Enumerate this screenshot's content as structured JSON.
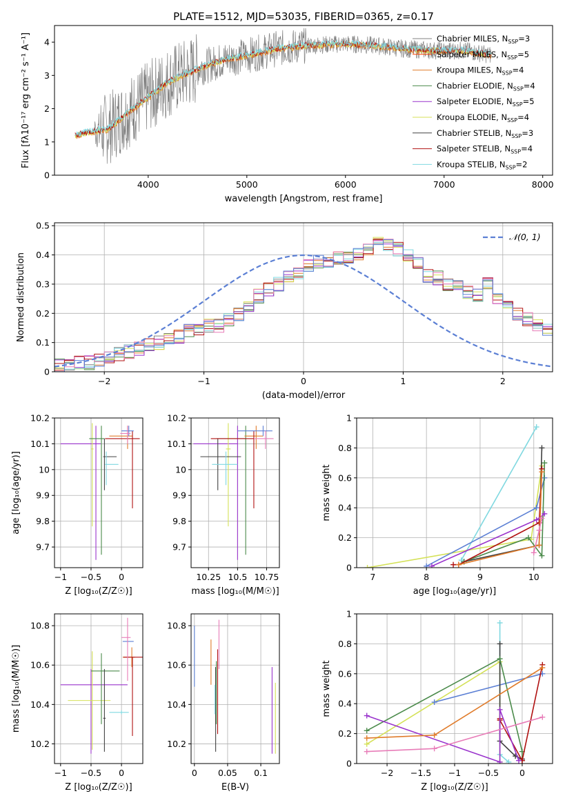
{
  "figure": {
    "title": "PLATE=1512, MJD=53035, FIBERID=0365, z=0.17",
    "colors": {
      "chabrier_miles": "#808080",
      "salpeter_miles": "#ff4500",
      "kroupa_miles": "#e07b2a",
      "chabrier_elodie": "#4a8a4a",
      "salpeter_elodie": "#9932cc",
      "kroupa_elodie": "#d4e157",
      "chabrier_stelib": "#404040",
      "salpeter_stelib": "#b01010",
      "kroupa_stelib": "#7fd8e0",
      "gaussian": "#5b7fd4",
      "pink": "#e87cb8",
      "blue": "#5b7fd4"
    }
  },
  "chart_data": [
    {
      "id": "spectrum",
      "type": "line",
      "title": "PLATE=1512, MJD=53035, FIBERID=0365, z=0.17",
      "xlabel": "wavelength [Angstrom, rest frame]",
      "ylabel": "Flux [fλ10⁻¹⁷ erg cm⁻² s⁻¹ A⁻¹]",
      "xlim": [
        3050,
        8100
      ],
      "ylim": [
        0,
        4.5
      ],
      "xticks": [
        4000,
        5000,
        6000,
        7000,
        8000
      ],
      "yticks": [
        0,
        1,
        2,
        3,
        4
      ],
      "legend": [
        "Chabrier MILES, N_SSP=3",
        "Salpeter MILES, N_SSP=5",
        "Kroupa MILES, N_SSP=4",
        "Chabrier ELODIE, N_SSP=4",
        "Salpeter ELODIE, N_SSP=5",
        "Kroupa ELODIE, N_SSP=4",
        "Chabrier STELIB, N_SSP=3",
        "Salpeter STELIB, N_SSP=4",
        "Kroupa STELIB, N_SSP=2"
      ],
      "continuum": [
        [
          3260,
          1.2
        ],
        [
          3400,
          1.3
        ],
        [
          3600,
          1.4
        ],
        [
          3800,
          1.9
        ],
        [
          4000,
          2.35
        ],
        [
          4200,
          2.8
        ],
        [
          4500,
          3.2
        ],
        [
          4800,
          3.5
        ],
        [
          5000,
          3.6
        ],
        [
          5300,
          3.8
        ],
        [
          5600,
          3.9
        ],
        [
          6000,
          3.95
        ],
        [
          6300,
          3.9
        ],
        [
          6600,
          3.8
        ],
        [
          6900,
          3.75
        ],
        [
          7200,
          3.75
        ],
        [
          7500,
          3.6
        ]
      ]
    },
    {
      "id": "residuals",
      "type": "histogram",
      "xlabel": "(data-model)/error",
      "ylabel": "Normed distribution",
      "legend_label": "𝒩(0, 1)",
      "xlim": [
        -2.5,
        2.5
      ],
      "ylim": [
        0,
        0.51
      ],
      "xticks": [
        -2,
        -1,
        0,
        1,
        2
      ],
      "yticks": [
        0.0,
        0.1,
        0.2,
        0.3,
        0.4,
        0.5
      ],
      "bin_width": 0.1,
      "bins_from": -2.5,
      "base_values": [
        0.02,
        0.02,
        0.03,
        0.03,
        0.04,
        0.05,
        0.06,
        0.07,
        0.08,
        0.09,
        0.1,
        0.12,
        0.12,
        0.14,
        0.15,
        0.16,
        0.16,
        0.18,
        0.2,
        0.23,
        0.26,
        0.28,
        0.3,
        0.32,
        0.34,
        0.36,
        0.38,
        0.38,
        0.39,
        0.39,
        0.4,
        0.42,
        0.45,
        0.44,
        0.42,
        0.4,
        0.37,
        0.33,
        0.32,
        0.3,
        0.29,
        0.27,
        0.26,
        0.3,
        0.25,
        0.22,
        0.2,
        0.18,
        0.16,
        0.14,
        0.13,
        0.12,
        0.1,
        0.09,
        0.08,
        0.08,
        0.07,
        0.06,
        0.05,
        0.05
      ]
    },
    {
      "id": "age-vs-Z",
      "type": "errorbar",
      "xlabel": "Z [log₁₀(Z/Z☉)]",
      "ylabel": "age  [log₁₀(age/yr)]",
      "xlim": [
        -1.1,
        0.35
      ],
      "ylim": [
        9.62,
        10.2
      ],
      "xticks": [
        -1.0,
        -0.5,
        0.0
      ],
      "yticks": [
        9.7,
        9.8,
        9.9,
        10.0,
        10.1,
        10.2
      ],
      "points": [
        {
          "x": -0.42,
          "y": 10.1,
          "xerr": [
            0.58,
            0.08
          ],
          "yerr": [
            0.45,
            0.07
          ],
          "c": "salpeter_elodie"
        },
        {
          "x": -0.48,
          "y": 10.08,
          "xerr": [
            0.02,
            0.02
          ],
          "yerr": [
            0.3,
            0.1
          ],
          "c": "kroupa_elodie"
        },
        {
          "x": -0.33,
          "y": 10.12,
          "xerr": [
            0.2,
            0.05
          ],
          "yerr": [
            0.45,
            0.05
          ],
          "c": "chabrier_elodie"
        },
        {
          "x": -0.28,
          "y": 10.05,
          "xerr": [
            0.02,
            0.2
          ],
          "yerr": [
            0.13,
            0.07
          ],
          "c": "chabrier_stelib"
        },
        {
          "x": -0.25,
          "y": 10.02,
          "xerr": [
            0.02,
            0.2
          ],
          "yerr": [
            0.08,
            0.05
          ],
          "c": "kroupa_stelib"
        },
        {
          "x": 0.1,
          "y": 10.13,
          "xerr": [
            0.3,
            0.08
          ],
          "yerr": [
            0.05,
            0.04
          ],
          "c": "kroupa_miles"
        },
        {
          "x": 0.18,
          "y": 10.12,
          "xerr": [
            0.45,
            0.12
          ],
          "yerr": [
            0.27,
            0.03
          ],
          "c": "salpeter_stelib"
        },
        {
          "x": 0.12,
          "y": 10.15,
          "xerr": [
            0.12,
            0.08
          ],
          "yerr": [
            0.02,
            0.02
          ],
          "c": "blue"
        },
        {
          "x": 0.1,
          "y": 10.14,
          "xerr": [
            0.12,
            0.05
          ],
          "yerr": [
            0.04,
            0.03
          ],
          "c": "pink"
        }
      ]
    },
    {
      "id": "age-vs-mass",
      "type": "errorbar",
      "xlabel": "mass [log₁₀(M/M☉)]",
      "ylabel": "",
      "xlim": [
        10.1,
        10.86
      ],
      "ylim": [
        9.62,
        10.2
      ],
      "xticks": [
        10.25,
        10.5,
        10.75
      ],
      "yticks": [
        9.7,
        9.8,
        9.9,
        10.0,
        10.1,
        10.2
      ],
      "points": [
        {
          "x": 10.5,
          "y": 10.1,
          "xerr": [
            0.38,
            0.0
          ],
          "yerr": [
            0.45,
            0.07
          ],
          "c": "salpeter_elodie"
        },
        {
          "x": 10.42,
          "y": 10.08,
          "xerr": [
            0.02,
            0.02
          ],
          "yerr": [
            0.3,
            0.1
          ],
          "c": "kroupa_elodie"
        },
        {
          "x": 10.57,
          "y": 10.12,
          "xerr": [
            0.25,
            0.0
          ],
          "yerr": [
            0.45,
            0.05
          ],
          "c": "chabrier_elodie"
        },
        {
          "x": 10.33,
          "y": 10.05,
          "xerr": [
            0.15,
            0.2
          ],
          "yerr": [
            0.13,
            0.07
          ],
          "c": "chabrier_stelib"
        },
        {
          "x": 10.4,
          "y": 10.02,
          "xerr": [
            0.12,
            0.1
          ],
          "yerr": [
            0.08,
            0.05
          ],
          "c": "kroupa_stelib"
        },
        {
          "x": 10.66,
          "y": 10.13,
          "xerr": [
            0.1,
            0.06
          ],
          "yerr": [
            0.05,
            0.04
          ],
          "c": "kroupa_miles"
        },
        {
          "x": 10.64,
          "y": 10.12,
          "xerr": [
            0.37,
            0.0
          ],
          "yerr": [
            0.27,
            0.03
          ],
          "c": "salpeter_stelib"
        },
        {
          "x": 10.72,
          "y": 10.15,
          "xerr": [
            0.22,
            0.08
          ],
          "yerr": [
            0.02,
            0.02
          ],
          "c": "blue"
        },
        {
          "x": 10.74,
          "y": 10.12,
          "xerr": [
            0.1,
            0.07
          ],
          "yerr": [
            0.04,
            0.03
          ],
          "c": "pink"
        }
      ]
    },
    {
      "id": "weight-vs-age",
      "type": "line",
      "xlabel": "age  [log₁₀(age/yr)]",
      "ylabel": "mass weight",
      "xlim": [
        6.7,
        10.35
      ],
      "ylim": [
        0,
        1.0
      ],
      "xticks": [
        7,
        8,
        9,
        10
      ],
      "yticks": [
        0.0,
        0.2,
        0.4,
        0.6,
        0.8,
        1.0
      ],
      "series": [
        {
          "c": "kroupa_stelib",
          "x": [
            8.65,
            10.05
          ],
          "y": [
            0.05,
            0.94
          ]
        },
        {
          "c": "kroupa_elodie",
          "x": [
            6.9,
            9.95,
            10.15
          ],
          "y": [
            0.0,
            0.19,
            0.68
          ]
        },
        {
          "c": "blue",
          "x": [
            8.0,
            10.05,
            10.2
          ],
          "y": [
            0.01,
            0.4,
            0.6
          ]
        },
        {
          "c": "chabrier_stelib",
          "x": [
            8.7,
            10.1,
            10.15
          ],
          "y": [
            0.04,
            0.15,
            0.8
          ]
        },
        {
          "c": "chabrier_elodie",
          "x": [
            8.7,
            9.9,
            10.15,
            10.2
          ],
          "y": [
            0.04,
            0.2,
            0.08,
            0.7
          ]
        },
        {
          "c": "salpeter_stelib",
          "x": [
            8.5,
            8.6,
            10.1,
            10.15
          ],
          "y": [
            0.02,
            0.02,
            0.3,
            0.66
          ]
        },
        {
          "c": "salpeter_elodie",
          "x": [
            8.1,
            10.05,
            10.2
          ],
          "y": [
            0.01,
            0.32,
            0.36
          ]
        },
        {
          "c": "kroupa_miles",
          "x": [
            8.6,
            10.1,
            10.15
          ],
          "y": [
            0.02,
            0.15,
            0.64
          ]
        },
        {
          "c": "pink",
          "x": [
            10.0,
            10.1,
            10.15
          ],
          "y": [
            0.1,
            0.25,
            0.33
          ]
        }
      ]
    },
    {
      "id": "mass-vs-Z",
      "type": "errorbar",
      "xlabel": "Z [log₁₀(Z/Z☉)]",
      "ylabel": "mass [log₁₀(M/M☉)]",
      "xlim": [
        -1.1,
        0.35
      ],
      "ylim": [
        10.1,
        10.86
      ],
      "xticks": [
        -1.0,
        -0.5,
        0.0
      ],
      "yticks": [
        10.2,
        10.4,
        10.6,
        10.8
      ],
      "points": [
        {
          "x": -0.5,
          "y": 10.5,
          "xerr": [
            0.5,
            0.6
          ],
          "yerr": [
            0.35,
            0.08
          ],
          "c": "salpeter_elodie"
        },
        {
          "x": -0.48,
          "y": 10.42,
          "xerr": [
            0.4,
            0.3
          ],
          "yerr": [
            0.25,
            0.25
          ],
          "c": "kroupa_elodie"
        },
        {
          "x": -0.33,
          "y": 10.57,
          "xerr": [
            0.17,
            0.3
          ],
          "yerr": [
            0.27,
            0.09
          ],
          "c": "chabrier_elodie"
        },
        {
          "x": -0.28,
          "y": 10.33,
          "xerr": [
            0.02,
            0.02
          ],
          "yerr": [
            0.17,
            0.25
          ],
          "c": "chabrier_stelib"
        },
        {
          "x": 0.0,
          "y": 10.36,
          "xerr": [
            0.2,
            0.12
          ],
          "yerr": [
            0.01,
            0.01
          ],
          "c": "kroupa_stelib"
        },
        {
          "x": 0.17,
          "y": 10.64,
          "xerr": [
            0.15,
            0.05
          ],
          "yerr": [
            0.05,
            0.05
          ],
          "c": "kroupa_miles"
        },
        {
          "x": 0.18,
          "y": 10.64,
          "xerr": [
            0.15,
            0.17
          ],
          "yerr": [
            0.4,
            0.0
          ],
          "c": "salpeter_stelib"
        },
        {
          "x": 0.12,
          "y": 10.72,
          "xerr": [
            0.1,
            0.08
          ],
          "yerr": [
            0.0,
            0.0
          ],
          "c": "blue"
        },
        {
          "x": 0.1,
          "y": 10.74,
          "xerr": [
            0.1,
            0.05
          ],
          "yerr": [
            0.22,
            0.1
          ],
          "c": "pink"
        }
      ]
    },
    {
      "id": "mass-vs-ebv",
      "type": "errorbar",
      "xlabel": "E(B-V)",
      "ylabel": "",
      "xlim": [
        -0.005,
        0.128
      ],
      "ylim": [
        10.1,
        10.86
      ],
      "xticks": [
        0.0,
        0.05,
        0.1
      ],
      "yticks": [
        10.2,
        10.4,
        10.6,
        10.8
      ],
      "points": [
        {
          "x": 0.0,
          "y": 10.64,
          "xerr": [
            0,
            0
          ],
          "yerr": [
            0.15,
            0.16
          ],
          "c": "blue"
        },
        {
          "x": 0.025,
          "y": 10.6,
          "xerr": [
            0,
            0
          ],
          "yerr": [
            0.1,
            0.13
          ],
          "c": "kroupa_miles"
        },
        {
          "x": 0.032,
          "y": 10.37,
          "xerr": [
            0,
            0
          ],
          "yerr": [
            0.21,
            0.22
          ],
          "c": "chabrier_stelib"
        },
        {
          "x": 0.033,
          "y": 10.4,
          "xerr": [
            0,
            0
          ],
          "yerr": [
            0.1,
            0.22
          ],
          "c": "chabrier_elodie"
        },
        {
          "x": 0.035,
          "y": 10.45,
          "xerr": [
            0,
            0
          ],
          "yerr": [
            0.2,
            0.23
          ],
          "c": "salpeter_stelib"
        },
        {
          "x": 0.037,
          "y": 10.7,
          "xerr": [
            0,
            0
          ],
          "yerr": [
            0.12,
            0.13
          ],
          "c": "pink"
        },
        {
          "x": 0.031,
          "y": 10.38,
          "xerr": [
            0,
            0
          ],
          "yerr": [
            0.03,
            0.12
          ],
          "c": "kroupa_stelib"
        },
        {
          "x": 0.117,
          "y": 10.35,
          "xerr": [
            0,
            0
          ],
          "yerr": [
            0.2,
            0.24
          ],
          "c": "salpeter_elodie"
        },
        {
          "x": 0.122,
          "y": 10.33,
          "xerr": [
            0,
            0
          ],
          "yerr": [
            0.18,
            0.18
          ],
          "c": "kroupa_elodie"
        }
      ]
    },
    {
      "id": "weight-vs-Z",
      "type": "line",
      "xlabel": "Z [log₁₀(Z/Z☉)]",
      "ylabel": "mass weight",
      "xlim": [
        -2.45,
        0.45
      ],
      "ylim": [
        0,
        1.0
      ],
      "xticks": [
        -2.0,
        -1.5,
        -1.0,
        -0.5,
        0.0
      ],
      "yticks": [
        0.0,
        0.2,
        0.4,
        0.6,
        0.8,
        1.0
      ],
      "series": [
        {
          "c": "kroupa_stelib",
          "x": [
            -0.33,
            -0.33,
            -0.2
          ],
          "y": [
            0.94,
            0.06,
            0.01
          ]
        },
        {
          "c": "kroupa_elodie",
          "x": [
            -2.3,
            -0.33,
            -0.33
          ],
          "y": [
            0.13,
            0.68,
            0.01
          ]
        },
        {
          "c": "blue",
          "x": [
            -1.3,
            0.3
          ],
          "y": [
            0.41,
            0.6
          ]
        },
        {
          "c": "chabrier_stelib",
          "x": [
            -0.33,
            -0.33,
            -0.1,
            0.0
          ],
          "y": [
            0.8,
            0.15,
            0.05,
            0.03
          ]
        },
        {
          "c": "chabrier_elodie",
          "x": [
            -2.3,
            -0.33,
            -0.0,
            0.0
          ],
          "y": [
            0.22,
            0.7,
            0.08,
            0.02
          ]
        },
        {
          "c": "salpeter_stelib",
          "x": [
            -0.33,
            -0.33,
            0.0,
            0.3
          ],
          "y": [
            0.3,
            0.29,
            0.02,
            0.66
          ]
        },
        {
          "c": "salpeter_elodie",
          "x": [
            -2.3,
            -0.33,
            -0.33,
            -0.05
          ],
          "y": [
            0.32,
            0.01,
            0.36,
            0.02
          ]
        },
        {
          "c": "kroupa_miles",
          "x": [
            -2.3,
            -1.3,
            0.3
          ],
          "y": [
            0.17,
            0.19,
            0.64
          ]
        },
        {
          "c": "pink",
          "x": [
            -2.3,
            -1.3,
            0.3
          ],
          "y": [
            0.08,
            0.1,
            0.31
          ]
        }
      ]
    }
  ]
}
